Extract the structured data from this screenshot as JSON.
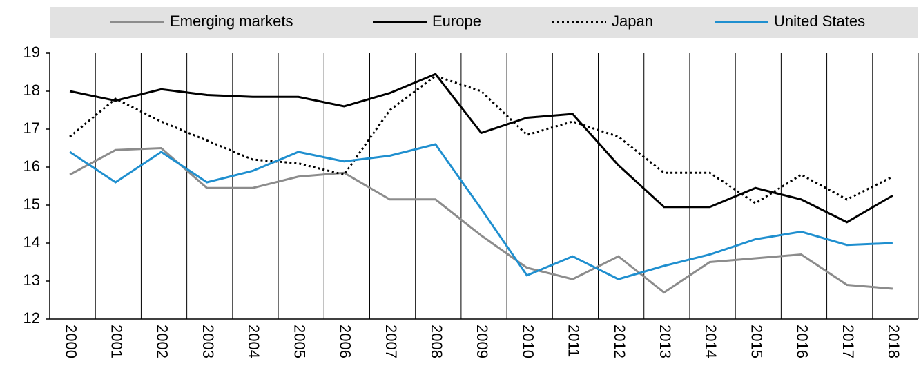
{
  "chart_data": {
    "type": "line",
    "categories": [
      "2000",
      "2001",
      "2002",
      "2003",
      "2004",
      "2005",
      "2006",
      "2007",
      "2008",
      "2009",
      "2010",
      "2011",
      "2012",
      "2013",
      "2014",
      "2015",
      "2016",
      "2017",
      "2018"
    ],
    "series": [
      {
        "name": "Emerging markets",
        "color": "#8c8c8c",
        "dash": "solid",
        "values": [
          15.8,
          16.45,
          16.5,
          15.45,
          15.45,
          15.75,
          15.85,
          15.15,
          15.15,
          14.2,
          13.35,
          13.05,
          13.65,
          12.7,
          13.5,
          13.6,
          13.7,
          12.9,
          12.8
        ]
      },
      {
        "name": "Europe",
        "color": "#000000",
        "dash": "solid",
        "values": [
          18.0,
          17.75,
          18.05,
          17.9,
          17.85,
          17.85,
          17.6,
          17.95,
          18.45,
          16.9,
          17.3,
          17.4,
          16.05,
          14.95,
          14.95,
          15.45,
          15.15,
          14.55,
          15.25
        ]
      },
      {
        "name": "Japan",
        "color": "#000000",
        "dash": "dotted",
        "values": [
          16.8,
          17.8,
          17.2,
          16.7,
          16.2,
          16.1,
          15.8,
          17.5,
          18.4,
          18.0,
          16.85,
          17.2,
          16.8,
          15.85,
          15.85,
          15.05,
          15.8,
          15.15,
          15.75
        ]
      },
      {
        "name": "United States",
        "color": "#1f8fcf",
        "dash": "solid",
        "values": [
          16.4,
          15.6,
          16.4,
          15.6,
          15.9,
          16.4,
          16.15,
          16.3,
          16.6,
          14.9,
          13.15,
          13.65,
          13.05,
          13.4,
          13.7,
          14.1,
          14.3,
          13.95,
          14.0
        ]
      }
    ],
    "ylim": [
      12,
      19
    ],
    "yticks": [
      12,
      13,
      14,
      15,
      16,
      17,
      18,
      19
    ],
    "legend": "top"
  }
}
